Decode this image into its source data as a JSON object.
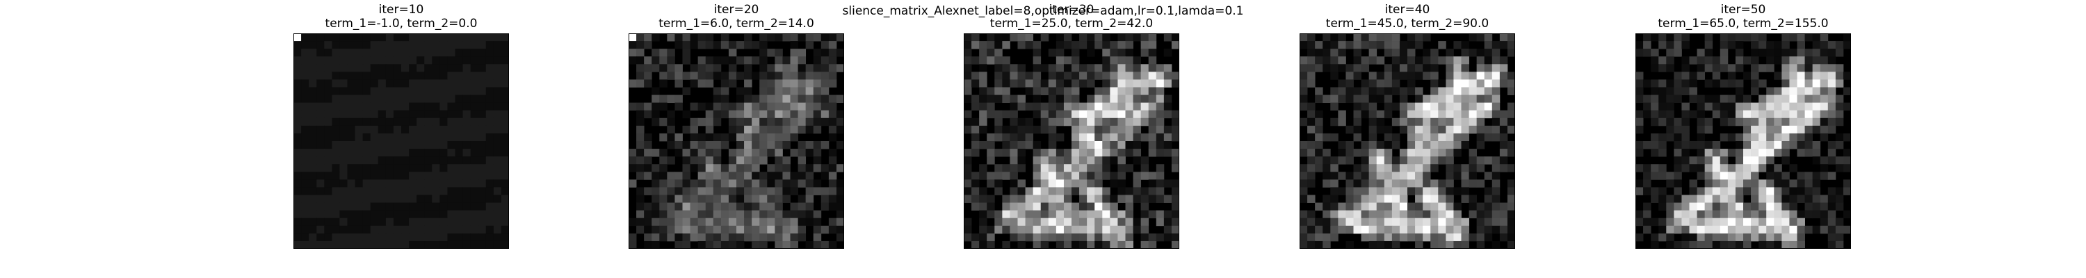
{
  "figure_title": "slience_matrix_Alexnet_label=8,optimizer=adam,lr=0.1,lamda=0.1",
  "chart_data": [
    {
      "type": "heatmap",
      "title_line1": "iter=10",
      "title_line2": "term_1=-1.0, term_2=0.0",
      "iter": 10,
      "term_1": -1.0,
      "term_2": 0.0,
      "grid": false,
      "axes_visible": false,
      "colormap": "gray"
    },
    {
      "type": "heatmap",
      "title_line1": "iter=20",
      "title_line2": "term_1=6.0, term_2=14.0",
      "iter": 20,
      "term_1": 6.0,
      "term_2": 14.0,
      "grid": false,
      "axes_visible": false,
      "colormap": "gray"
    },
    {
      "type": "heatmap",
      "title_line1": "iter=30",
      "title_line2": "term_1=25.0, term_2=42.0",
      "iter": 30,
      "term_1": 25.0,
      "term_2": 42.0,
      "grid": false,
      "axes_visible": false,
      "colormap": "gray"
    },
    {
      "type": "heatmap",
      "title_line1": "iter=40",
      "title_line2": "term_1=45.0, term_2=90.0",
      "iter": 40,
      "term_1": 45.0,
      "term_2": 90.0,
      "grid": false,
      "axes_visible": false,
      "colormap": "gray"
    },
    {
      "type": "heatmap",
      "title_line1": "iter=50",
      "title_line2": "term_1=65.0, term_2=155.0",
      "iter": 50,
      "term_1": 65.0,
      "term_2": 155.0,
      "grid": false,
      "axes_visible": false,
      "colormap": "gray"
    }
  ]
}
